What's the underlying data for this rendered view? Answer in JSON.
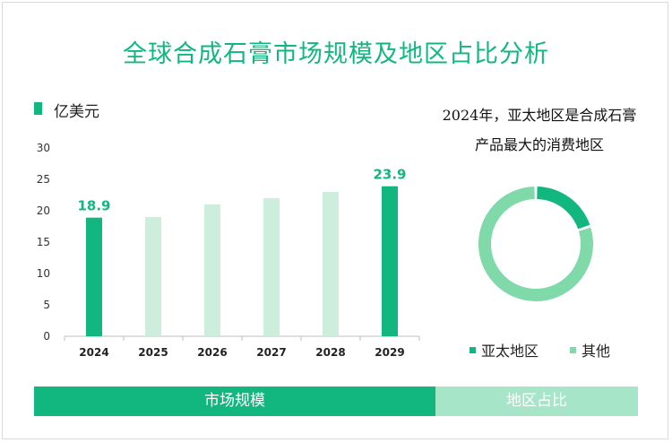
{
  "title": "全球合成石膏市场规模及地区占比分析",
  "colors": {
    "primary": "#11b77f",
    "light_bar": "#cdeedd",
    "pie_other": "#7fd9a8",
    "tab_inactive": "#a7e5c8"
  },
  "chart_data": [
    {
      "type": "bar",
      "unit": "亿美元",
      "categories": [
        "2024",
        "2025",
        "2026",
        "2027",
        "2028",
        "2029"
      ],
      "values": [
        18.9,
        19.0,
        21.0,
        22.0,
        23.0,
        23.9
      ],
      "data_labels": [
        "18.9",
        "",
        "",
        "",
        "",
        "23.9"
      ],
      "highlight": [
        true,
        false,
        false,
        false,
        false,
        true
      ],
      "ylim": [
        0,
        30
      ],
      "yticks": [
        "0",
        "5",
        "10",
        "15",
        "20",
        "25",
        "30"
      ],
      "grid": false
    },
    {
      "type": "pie",
      "style": "donut",
      "caption_line1": "2024年，亚太地区是合成石膏",
      "caption_line2": "产品最大的消费地区",
      "slices": [
        {
          "name": "亚太地区",
          "value": 20
        },
        {
          "name": "其他",
          "value": 80
        }
      ],
      "legend_position": "bottom"
    }
  ],
  "tabs": [
    "市场规模",
    "地区占比"
  ]
}
